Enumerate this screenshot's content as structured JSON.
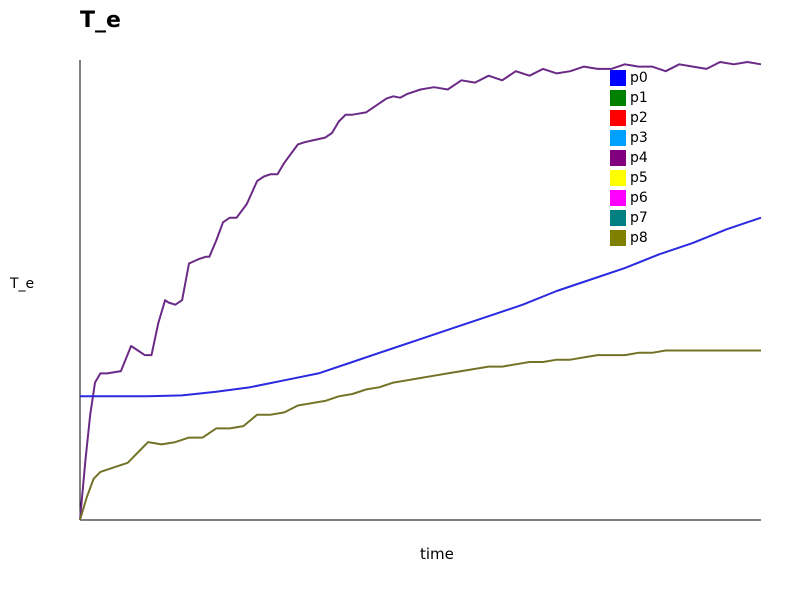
{
  "chart_data": {
    "type": "line",
    "title": "T_e",
    "xlabel": "time",
    "ylabel": "T_e",
    "ylim": [
      0,
      1
    ],
    "xlim": [
      0,
      1
    ],
    "grid": false,
    "legend_position": "top-right",
    "legend": [
      {
        "name": "p0",
        "color": "#0000ff"
      },
      {
        "name": "p1",
        "color": "#008000"
      },
      {
        "name": "p2",
        "color": "#ff0000"
      },
      {
        "name": "p3",
        "color": "#00a0ff"
      },
      {
        "name": "p4",
        "color": "#800080"
      },
      {
        "name": "p5",
        "color": "#ffff00"
      },
      {
        "name": "p6",
        "color": "#ff00ff"
      },
      {
        "name": "p7",
        "color": "#008080"
      },
      {
        "name": "p8",
        "color": "#808000"
      }
    ],
    "series": [
      {
        "name": "p4",
        "color": "#6a2a86",
        "x": [
          0,
          0.008,
          0.015,
          0.022,
          0.03,
          0.04,
          0.06,
          0.075,
          0.085,
          0.095,
          0.105,
          0.115,
          0.125,
          0.13,
          0.14,
          0.15,
          0.16,
          0.175,
          0.185,
          0.19,
          0.2,
          0.21,
          0.22,
          0.23,
          0.245,
          0.26,
          0.27,
          0.28,
          0.29,
          0.3,
          0.32,
          0.33,
          0.345,
          0.36,
          0.37,
          0.38,
          0.39,
          0.4,
          0.42,
          0.44,
          0.45,
          0.46,
          0.47,
          0.48,
          0.5,
          0.52,
          0.54,
          0.56,
          0.58,
          0.6,
          0.62,
          0.64,
          0.66,
          0.68,
          0.7,
          0.72,
          0.74,
          0.76,
          0.78,
          0.8,
          0.82,
          0.84,
          0.86,
          0.88,
          0.9,
          0.92,
          0.94,
          0.96,
          0.98,
          1.0
        ],
        "y": [
          0,
          0.13,
          0.23,
          0.3,
          0.32,
          0.32,
          0.325,
          0.38,
          0.37,
          0.36,
          0.36,
          0.43,
          0.48,
          0.475,
          0.47,
          0.48,
          0.56,
          0.57,
          0.575,
          0.575,
          0.61,
          0.65,
          0.66,
          0.66,
          0.69,
          0.74,
          0.75,
          0.755,
          0.755,
          0.78,
          0.82,
          0.825,
          0.83,
          0.835,
          0.845,
          0.87,
          0.885,
          0.885,
          0.89,
          0.91,
          0.92,
          0.925,
          0.922,
          0.93,
          0.94,
          0.945,
          0.94,
          0.96,
          0.955,
          0.97,
          0.96,
          0.98,
          0.97,
          0.985,
          0.975,
          0.98,
          0.99,
          0.985,
          0.985,
          0.995,
          0.99,
          0.99,
          0.98,
          0.995,
          0.99,
          0.985,
          1.0,
          0.995,
          1.0,
          0.995
        ]
      },
      {
        "name": "p0",
        "color": "#2a2ae0",
        "x": [
          0,
          0.1,
          0.15,
          0.2,
          0.25,
          0.3,
          0.35,
          0.4,
          0.45,
          0.5,
          0.55,
          0.6,
          0.65,
          0.7,
          0.75,
          0.8,
          0.85,
          0.9,
          0.95,
          1.0
        ],
        "y": [
          0.27,
          0.27,
          0.272,
          0.28,
          0.29,
          0.305,
          0.32,
          0.345,
          0.37,
          0.395,
          0.42,
          0.445,
          0.47,
          0.5,
          0.525,
          0.55,
          0.58,
          0.605,
          0.635,
          0.66
        ]
      },
      {
        "name": "p8",
        "color": "#737328",
        "x": [
          0,
          0.01,
          0.02,
          0.03,
          0.05,
          0.07,
          0.09,
          0.1,
          0.12,
          0.14,
          0.16,
          0.18,
          0.2,
          0.22,
          0.24,
          0.26,
          0.28,
          0.3,
          0.32,
          0.34,
          0.36,
          0.38,
          0.4,
          0.42,
          0.44,
          0.46,
          0.48,
          0.5,
          0.52,
          0.54,
          0.56,
          0.58,
          0.6,
          0.62,
          0.64,
          0.66,
          0.68,
          0.7,
          0.72,
          0.74,
          0.76,
          0.78,
          0.8,
          0.82,
          0.84,
          0.86,
          0.88,
          0.9,
          0.92,
          0.94,
          0.96,
          0.98,
          1.0
        ],
        "y": [
          0,
          0.05,
          0.09,
          0.105,
          0.115,
          0.125,
          0.155,
          0.17,
          0.165,
          0.17,
          0.18,
          0.18,
          0.2,
          0.2,
          0.205,
          0.23,
          0.23,
          0.235,
          0.25,
          0.255,
          0.26,
          0.27,
          0.275,
          0.285,
          0.29,
          0.3,
          0.305,
          0.31,
          0.315,
          0.32,
          0.325,
          0.33,
          0.335,
          0.335,
          0.34,
          0.345,
          0.345,
          0.35,
          0.35,
          0.355,
          0.36,
          0.36,
          0.36,
          0.365,
          0.365,
          0.37,
          0.37,
          0.37,
          0.37,
          0.37,
          0.37,
          0.37,
          0.37
        ]
      }
    ]
  }
}
